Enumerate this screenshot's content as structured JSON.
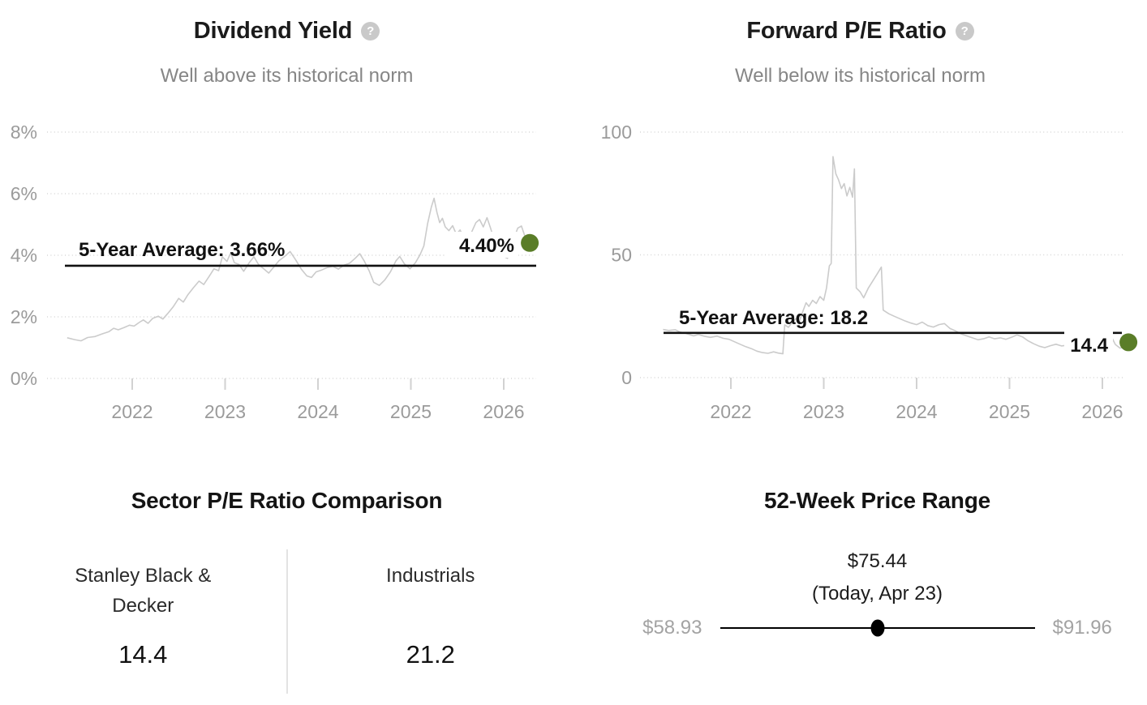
{
  "colors": {
    "accent_green": "#5a7d28",
    "marker_black": "#000000",
    "data_line_gray": "#cbcbcb",
    "muted_text_gray": "#9b9b9b"
  },
  "panels": {
    "dividend_yield": {
      "title": "Dividend Yield",
      "help_icon": "?",
      "subtitle": "Well above its historical norm",
      "chart_index": 0
    },
    "forward_pe": {
      "title": "Forward P/E Ratio",
      "help_icon": "?",
      "subtitle": "Well below its historical norm",
      "chart_index": 1
    },
    "sector_comparison": {
      "title": "Sector P/E Ratio Comparison",
      "columns": [
        {
          "label": "Stanley Black & Decker",
          "value": "14.4"
        },
        {
          "label": "Industrials",
          "value": "21.2"
        }
      ]
    },
    "price_range": {
      "title": "52-Week Price Range",
      "current_price": "$75.44",
      "current_note": "(Today, Apr 23)",
      "low": "$58.93",
      "high": "$91.96",
      "position_fraction": 0.5
    }
  },
  "chart_data": [
    {
      "type": "line",
      "title": "Dividend Yield",
      "subtitle": "Well above its historical norm",
      "x_range": [
        2021.3,
        2026.35
      ],
      "y_range": [
        0,
        8
      ],
      "grid": "dotted-horizontal",
      "legend_position": "none",
      "y_ticks": [
        {
          "value": 8,
          "label": "8%"
        },
        {
          "value": 6,
          "label": "6%"
        },
        {
          "value": 4,
          "label": "4%"
        },
        {
          "value": 2,
          "label": "2%"
        },
        {
          "value": 0,
          "label": "0%"
        }
      ],
      "x_ticks": [
        2022,
        2023,
        2024,
        2025,
        2026
      ],
      "average_line": {
        "value": 3.66,
        "label": "5-Year Average: 3.66%"
      },
      "current": {
        "x": 2026.28,
        "value": 4.4,
        "label": "4.40%"
      },
      "series": [
        {
          "name": "Dividend Yield %",
          "points": [
            [
              2021.3,
              1.32
            ],
            [
              2021.38,
              1.26
            ],
            [
              2021.45,
              1.22
            ],
            [
              2021.52,
              1.33
            ],
            [
              2021.6,
              1.36
            ],
            [
              2021.68,
              1.45
            ],
            [
              2021.75,
              1.52
            ],
            [
              2021.8,
              1.63
            ],
            [
              2021.85,
              1.58
            ],
            [
              2021.92,
              1.66
            ],
            [
              2021.97,
              1.73
            ],
            [
              2022.02,
              1.7
            ],
            [
              2022.08,
              1.83
            ],
            [
              2022.12,
              1.9
            ],
            [
              2022.17,
              1.79
            ],
            [
              2022.22,
              1.95
            ],
            [
              2022.28,
              2.02
            ],
            [
              2022.33,
              1.93
            ],
            [
              2022.38,
              2.1
            ],
            [
              2022.44,
              2.32
            ],
            [
              2022.5,
              2.6
            ],
            [
              2022.55,
              2.48
            ],
            [
              2022.6,
              2.72
            ],
            [
              2022.66,
              2.95
            ],
            [
              2022.72,
              3.16
            ],
            [
              2022.77,
              3.05
            ],
            [
              2022.83,
              3.32
            ],
            [
              2022.88,
              3.56
            ],
            [
              2022.93,
              3.5
            ],
            [
              2022.97,
              3.95
            ],
            [
              2023.02,
              3.8
            ],
            [
              2023.06,
              4.08
            ],
            [
              2023.1,
              3.76
            ],
            [
              2023.15,
              3.7
            ],
            [
              2023.2,
              3.48
            ],
            [
              2023.26,
              3.76
            ],
            [
              2023.31,
              3.95
            ],
            [
              2023.36,
              3.7
            ],
            [
              2023.42,
              3.55
            ],
            [
              2023.47,
              3.42
            ],
            [
              2023.52,
              3.6
            ],
            [
              2023.58,
              3.82
            ],
            [
              2023.64,
              3.96
            ],
            [
              2023.7,
              4.12
            ],
            [
              2023.76,
              3.85
            ],
            [
              2023.82,
              3.55
            ],
            [
              2023.88,
              3.33
            ],
            [
              2023.93,
              3.28
            ],
            [
              2023.98,
              3.46
            ],
            [
              2024.04,
              3.52
            ],
            [
              2024.1,
              3.6
            ],
            [
              2024.16,
              3.64
            ],
            [
              2024.22,
              3.55
            ],
            [
              2024.28,
              3.68
            ],
            [
              2024.34,
              3.74
            ],
            [
              2024.4,
              3.9
            ],
            [
              2024.45,
              4.05
            ],
            [
              2024.5,
              3.8
            ],
            [
              2024.55,
              3.5
            ],
            [
              2024.6,
              3.12
            ],
            [
              2024.66,
              3.02
            ],
            [
              2024.72,
              3.2
            ],
            [
              2024.78,
              3.46
            ],
            [
              2024.84,
              3.82
            ],
            [
              2024.88,
              3.96
            ],
            [
              2024.93,
              3.72
            ],
            [
              2024.99,
              3.56
            ],
            [
              2025.05,
              3.76
            ],
            [
              2025.1,
              4.02
            ],
            [
              2025.14,
              4.3
            ],
            [
              2025.18,
              5.02
            ],
            [
              2025.22,
              5.56
            ],
            [
              2025.25,
              5.85
            ],
            [
              2025.28,
              5.4
            ],
            [
              2025.31,
              5.06
            ],
            [
              2025.34,
              5.2
            ],
            [
              2025.37,
              4.92
            ],
            [
              2025.41,
              4.8
            ],
            [
              2025.45,
              4.96
            ],
            [
              2025.49,
              4.68
            ],
            [
              2025.53,
              4.82
            ],
            [
              2025.57,
              4.56
            ],
            [
              2025.61,
              4.46
            ],
            [
              2025.65,
              4.72
            ],
            [
              2025.7,
              5.06
            ],
            [
              2025.74,
              5.16
            ],
            [
              2025.78,
              4.92
            ],
            [
              2025.82,
              5.22
            ],
            [
              2025.86,
              4.86
            ],
            [
              2025.9,
              4.46
            ],
            [
              2025.95,
              4.2
            ],
            [
              2026.0,
              3.96
            ],
            [
              2026.04,
              3.9
            ],
            [
              2026.1,
              4.46
            ],
            [
              2026.15,
              4.88
            ],
            [
              2026.19,
              4.95
            ],
            [
              2026.23,
              4.6
            ],
            [
              2026.28,
              4.4
            ]
          ]
        }
      ]
    },
    {
      "type": "line",
      "title": "Forward P/E Ratio",
      "subtitle": "Well below its historical norm",
      "x_range": [
        2021.27,
        2026.35
      ],
      "y_range": [
        0,
        100
      ],
      "grid": "dotted-horizontal",
      "legend_position": "none",
      "y_ticks": [
        {
          "value": 100,
          "label": "100"
        },
        {
          "value": 50,
          "label": "50"
        },
        {
          "value": 0,
          "label": "0"
        }
      ],
      "x_ticks": [
        2022,
        2023,
        2024,
        2025,
        2026
      ],
      "average_line": {
        "value": 18.2,
        "label": "5-Year Average: 18.2"
      },
      "current": {
        "x": 2026.28,
        "value": 14.4,
        "label": "14.4"
      },
      "series": [
        {
          "name": "Forward P/E",
          "points": [
            [
              2021.27,
              19.6
            ],
            [
              2021.33,
              19.2
            ],
            [
              2021.4,
              19.5
            ],
            [
              2021.45,
              18.6
            ],
            [
              2021.5,
              18.2
            ],
            [
              2021.55,
              17.6
            ],
            [
              2021.6,
              17.0
            ],
            [
              2021.65,
              17.6
            ],
            [
              2021.72,
              16.8
            ],
            [
              2021.78,
              16.4
            ],
            [
              2021.85,
              16.9
            ],
            [
              2021.92,
              16.0
            ],
            [
              2021.98,
              15.6
            ],
            [
              2022.04,
              14.6
            ],
            [
              2022.1,
              13.6
            ],
            [
              2022.16,
              12.6
            ],
            [
              2022.22,
              11.8
            ],
            [
              2022.28,
              10.8
            ],
            [
              2022.34,
              10.2
            ],
            [
              2022.4,
              9.9
            ],
            [
              2022.46,
              10.5
            ],
            [
              2022.51,
              10.0
            ],
            [
              2022.56,
              9.7
            ],
            [
              2022.58,
              21.5
            ],
            [
              2022.62,
              20.5
            ],
            [
              2022.66,
              22.5
            ],
            [
              2022.7,
              24.0
            ],
            [
              2022.74,
              23.2
            ],
            [
              2022.78,
              27.5
            ],
            [
              2022.81,
              30.5
            ],
            [
              2022.84,
              29.0
            ],
            [
              2022.88,
              31.5
            ],
            [
              2022.92,
              30.2
            ],
            [
              2022.96,
              33.0
            ],
            [
              2023.0,
              31.5
            ],
            [
              2023.03,
              36.5
            ],
            [
              2023.06,
              45.5
            ],
            [
              2023.08,
              46.5
            ],
            [
              2023.1,
              90.0
            ],
            [
              2023.13,
              83.0
            ],
            [
              2023.16,
              80.5
            ],
            [
              2023.19,
              77.0
            ],
            [
              2023.22,
              79.0
            ],
            [
              2023.25,
              74.0
            ],
            [
              2023.28,
              77.5
            ],
            [
              2023.31,
              73.5
            ],
            [
              2023.33,
              85.0
            ],
            [
              2023.35,
              36.5
            ],
            [
              2023.39,
              35.0
            ],
            [
              2023.43,
              32.5
            ],
            [
              2023.48,
              36.5
            ],
            [
              2023.53,
              39.5
            ],
            [
              2023.58,
              42.5
            ],
            [
              2023.62,
              45.0
            ],
            [
              2023.64,
              27.5
            ],
            [
              2023.7,
              26.0
            ],
            [
              2023.76,
              25.0
            ],
            [
              2023.82,
              24.0
            ],
            [
              2023.88,
              23.0
            ],
            [
              2023.94,
              22.2
            ],
            [
              2024.0,
              21.6
            ],
            [
              2024.06,
              22.6
            ],
            [
              2024.12,
              21.2
            ],
            [
              2024.18,
              20.6
            ],
            [
              2024.24,
              21.6
            ],
            [
              2024.3,
              22.0
            ],
            [
              2024.36,
              20.0
            ],
            [
              2024.42,
              19.0
            ],
            [
              2024.48,
              17.8
            ],
            [
              2024.54,
              17.0
            ],
            [
              2024.6,
              16.2
            ],
            [
              2024.66,
              15.4
            ],
            [
              2024.72,
              15.8
            ],
            [
              2024.78,
              16.6
            ],
            [
              2024.84,
              15.8
            ],
            [
              2024.9,
              16.2
            ],
            [
              2024.96,
              15.6
            ],
            [
              2025.02,
              16.4
            ],
            [
              2025.08,
              17.4
            ],
            [
              2025.14,
              16.6
            ],
            [
              2025.2,
              15.0
            ],
            [
              2025.26,
              13.8
            ],
            [
              2025.32,
              12.8
            ],
            [
              2025.38,
              12.2
            ],
            [
              2025.44,
              13.0
            ],
            [
              2025.5,
              13.6
            ],
            [
              2025.56,
              12.9
            ],
            [
              2025.62,
              13.2
            ],
            [
              2025.68,
              13.9
            ],
            [
              2025.74,
              14.6
            ],
            [
              2025.8,
              14.9
            ],
            [
              2025.86,
              14.3
            ],
            [
              2025.92,
              14.0
            ],
            [
              2025.98,
              14.8
            ],
            [
              2026.04,
              16.9
            ],
            [
              2026.09,
              17.2
            ],
            [
              2026.14,
              13.5
            ],
            [
              2026.19,
              12.0
            ],
            [
              2026.24,
              12.6
            ],
            [
              2026.28,
              14.4
            ]
          ]
        }
      ]
    }
  ]
}
